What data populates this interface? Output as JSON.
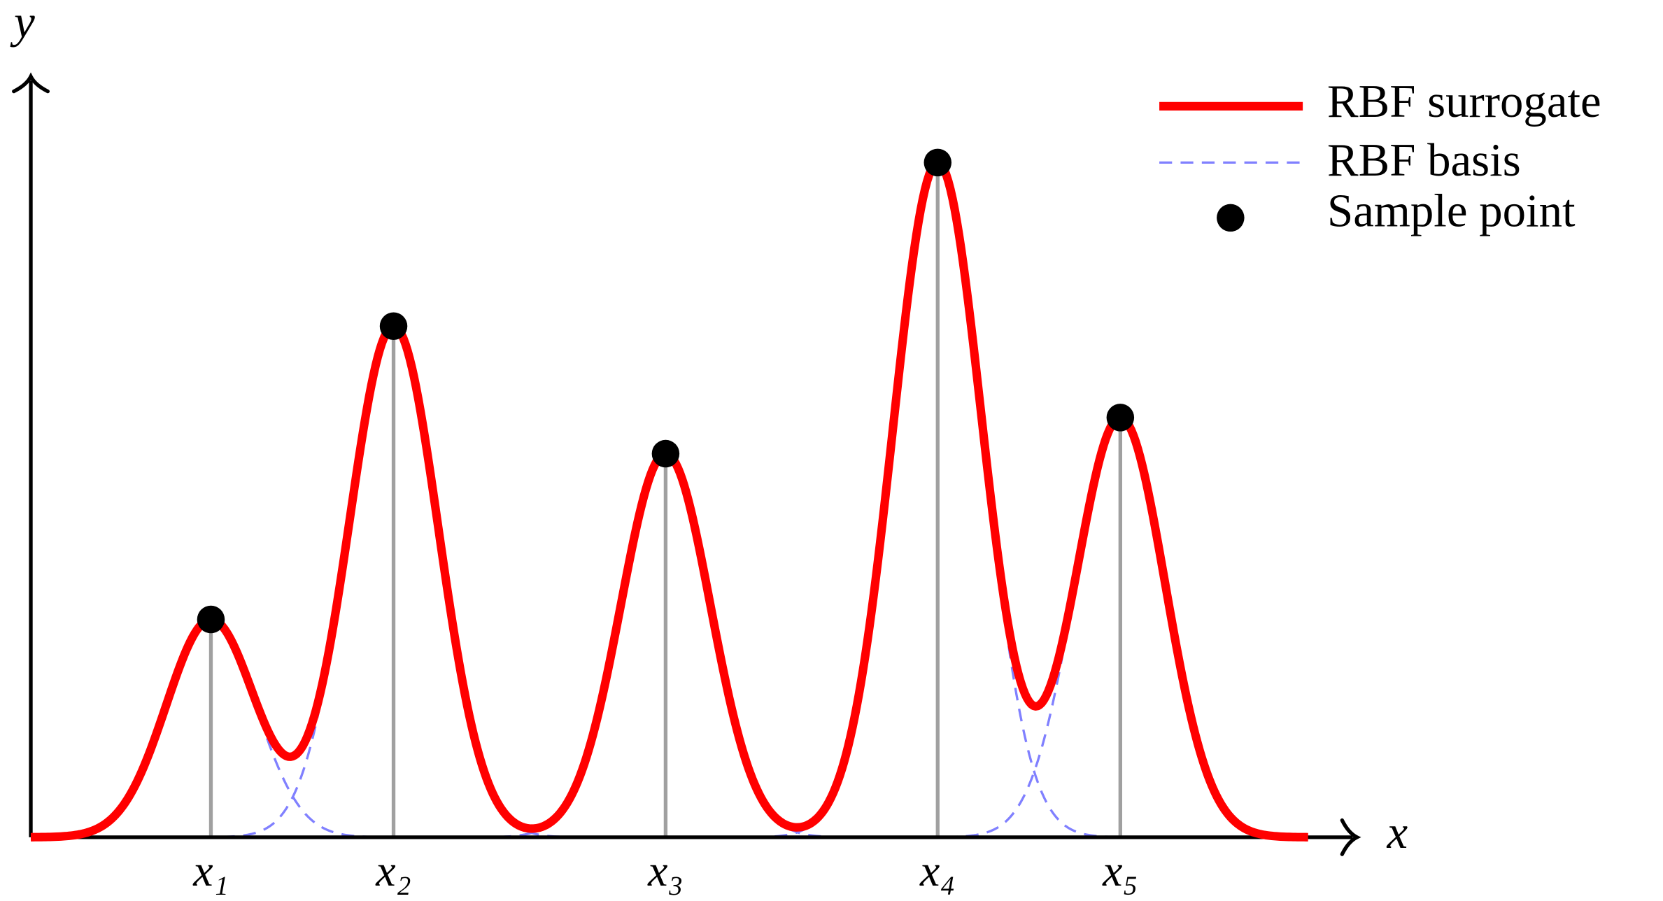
{
  "chart_data": {
    "type": "rbf",
    "xlabel": "x",
    "ylabel": "y",
    "categories": [
      "x₁",
      "x₂",
      "x₃",
      "x₄",
      "x₅"
    ],
    "x": [
      1.41,
      2.84,
      4.97,
      7.1,
      8.53
    ],
    "xlim": [
      0,
      10
    ],
    "ylim": [
      0,
      7
    ],
    "series": [
      {
        "name": "RBF surrogate",
        "color": "#ff0000"
      },
      {
        "name": "RBF basis",
        "color": "#8080ff"
      },
      {
        "name": "Sample point",
        "color": "#000000",
        "values": [
          2.05,
          4.81,
          3.61,
          6.35,
          3.95
        ]
      }
    ]
  }
}
